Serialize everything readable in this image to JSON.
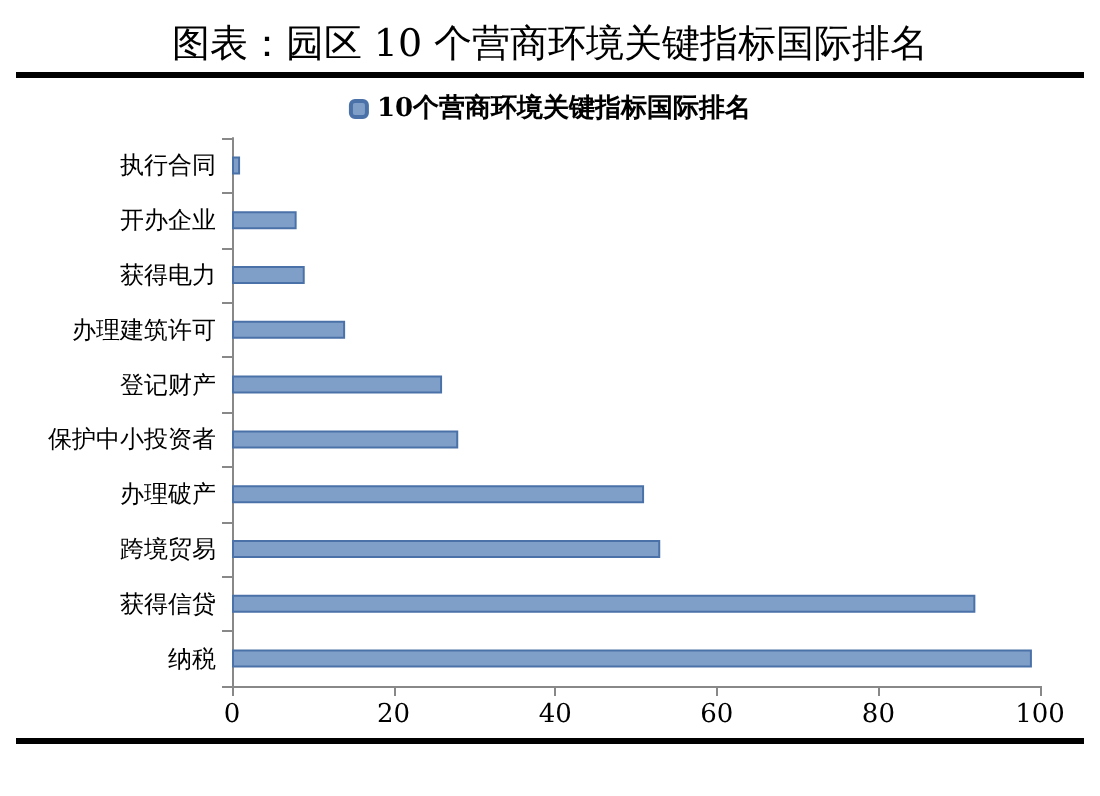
{
  "chart_data": {
    "type": "bar",
    "orientation": "horizontal",
    "title": "图表：园区 10 个营商环境关键指标国际排名",
    "categories": [
      "执行合同",
      "开办企业",
      "获得电力",
      "办理建筑许可",
      "登记财产",
      "保护中小投资者",
      "办理破产",
      "跨境贸易",
      "获得信贷",
      "纳税"
    ],
    "series": [
      {
        "name": "10个营商环境关键指标国际排名",
        "color": "#7f9fc8",
        "values": [
          1,
          8,
          9,
          14,
          26,
          28,
          51,
          53,
          92,
          99
        ]
      }
    ],
    "xlim": [
      0,
      100
    ],
    "xticks": [
      0,
      20,
      40,
      60,
      80,
      100
    ],
    "grid": false,
    "legend": "top"
  }
}
